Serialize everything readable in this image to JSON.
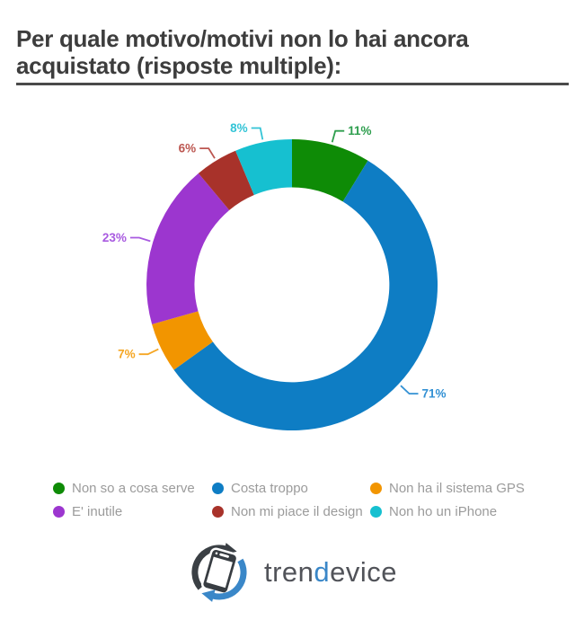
{
  "title": "Per quale motivo/motivi non lo hai ancora acquistato (risposte multiple):",
  "chart_data": {
    "type": "pie",
    "subtype": "donut",
    "title": "Per quale motivo/motivi non lo hai ancora acquistato (risposte multiple):",
    "unit": "%",
    "direction": "clockwise",
    "start_angle_deg": 0,
    "donut_hole_ratio": 0.67,
    "legend_position": "bottom",
    "segments": [
      {
        "label": "Non so a cosa serve",
        "value": 11,
        "data_label": "11%",
        "color": "#0e8b06",
        "label_color": "#2e9e4e"
      },
      {
        "label": "Costa troppo",
        "value": 71,
        "data_label": "71%",
        "color": "#0e7dc4",
        "label_color": "#3391d4"
      },
      {
        "label": "Non ha il sistema GPS",
        "value": 7,
        "data_label": "7%",
        "color": "#f29500",
        "label_color": "#f5a623"
      },
      {
        "label": "E' inutile",
        "value": 23,
        "data_label": "23%",
        "color": "#9c36cf",
        "label_color": "#a85ae0"
      },
      {
        "label": "Non mi piace il design",
        "value": 6,
        "data_label": "6%",
        "color": "#a8322a",
        "label_color": "#bc5650"
      },
      {
        "label": "Non ho un iPhone",
        "value": 8,
        "data_label": "8%",
        "color": "#16c0d0",
        "label_color": "#33c4d6"
      }
    ]
  },
  "logo": {
    "name": "trendevice",
    "text_parts": [
      {
        "text": "tren",
        "color": "#515359"
      },
      {
        "text": "d",
        "color": "#3a87c8"
      },
      {
        "text": "evice",
        "color": "#515359"
      }
    ],
    "icon_colors": {
      "arrow_dark": "#3a3f44",
      "arrow_blue": "#3a87c8",
      "phone_body": "#383d42"
    }
  },
  "colors": {
    "background": "#ffffff",
    "title_text": "#3d3d3d",
    "title_underline": "#4a4a4a",
    "legend_text": "#9b9b9b"
  }
}
